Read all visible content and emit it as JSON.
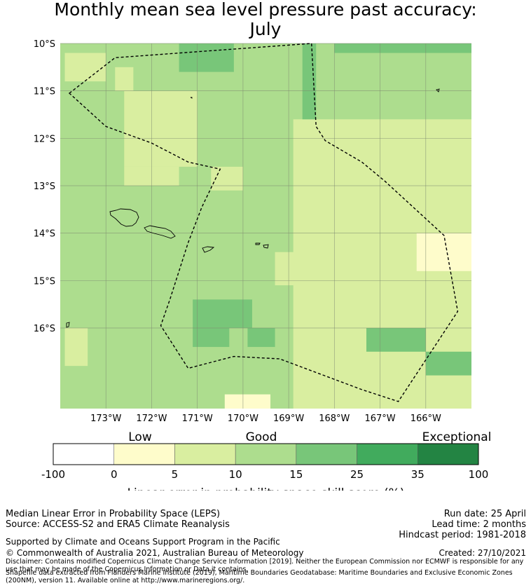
{
  "title": {
    "line1": "Monthly mean sea level pressure past accuracy:",
    "line2": "July"
  },
  "chart_data": {
    "type": "heatmap",
    "title": "Monthly mean sea level pressure past accuracy: July",
    "x_ticks": [
      "173°W",
      "172°W",
      "171°W",
      "170°W",
      "169°W",
      "168°W",
      "167°W",
      "166°W"
    ],
    "y_ticks": [
      "10°S",
      "11°S",
      "12°S",
      "13°S",
      "14°S",
      "15°S",
      "16°S"
    ],
    "lon_range": [
      174.0,
      165.0
    ],
    "lat_range": [
      10.0,
      17.7
    ],
    "colorbar": {
      "label": "Linear error in probability space skill score (%)",
      "ticks": [
        "-100",
        "0",
        "5",
        "10",
        "15",
        "25",
        "35",
        "100"
      ],
      "category_labels": [
        "Low",
        "Good",
        "Exceptional"
      ],
      "colors": [
        "#ffffff",
        "#fefccb",
        "#d9eea0",
        "#addd8e",
        "#78c679",
        "#41ab5d",
        "#238443"
      ]
    },
    "base_category": "10-15",
    "dominant_categories": [
      "5-10",
      "10-15",
      "15-25",
      "0-5"
    ],
    "regions": [
      {
        "category": "5-10",
        "from_lon": 173.9,
        "to_lon": 173.0,
        "from_lat": 10.2,
        "to_lat": 10.8
      },
      {
        "category": "15-25",
        "from_lon": 171.4,
        "to_lon": 170.2,
        "from_lat": 10.0,
        "to_lat": 10.6
      },
      {
        "category": "15-25",
        "from_lon": 168.0,
        "to_lon": 165.0,
        "from_lat": 10.0,
        "to_lat": 10.2
      },
      {
        "category": "5-10",
        "from_lon": 172.6,
        "to_lon": 171.0,
        "from_lat": 11.0,
        "to_lat": 12.6
      },
      {
        "category": "5-10",
        "from_lon": 168.9,
        "to_lon": 165.0,
        "from_lat": 11.6,
        "to_lat": 17.7
      },
      {
        "category": "0-5",
        "from_lon": 166.2,
        "to_lon": 165.0,
        "from_lat": 14.0,
        "to_lat": 14.8
      },
      {
        "category": "0-5",
        "from_lon": 170.4,
        "to_lon": 169.4,
        "from_lat": 17.4,
        "to_lat": 17.7
      },
      {
        "category": "15-25",
        "from_lon": 171.1,
        "to_lon": 169.8,
        "from_lat": 15.4,
        "to_lat": 16.0
      }
    ],
    "boundary_polygon_lonlat": [
      [
        173.8,
        11.05
      ],
      [
        172.8,
        10.3
      ],
      [
        168.5,
        10.0
      ],
      [
        168.4,
        11.75
      ],
      [
        168.2,
        12.05
      ],
      [
        167.4,
        12.5
      ],
      [
        166.9,
        12.9
      ],
      [
        165.6,
        14.05
      ],
      [
        165.3,
        15.65
      ],
      [
        166.6,
        17.55
      ],
      [
        167.4,
        17.3
      ],
      [
        169.2,
        16.65
      ],
      [
        170.2,
        16.6
      ],
      [
        171.2,
        16.85
      ],
      [
        171.8,
        15.95
      ],
      [
        171.6,
        15.4
      ],
      [
        171.2,
        14.2
      ],
      [
        170.9,
        13.45
      ],
      [
        170.5,
        12.65
      ],
      [
        171.2,
        12.5
      ],
      [
        172.0,
        12.1
      ],
      [
        173.0,
        11.75
      ]
    ],
    "islands": [
      "Savai'i",
      "Upolu",
      "Tutuila",
      "Manu'a"
    ]
  },
  "footer": {
    "left_line1": "Median Linear Error in Probability Space (LEPS)",
    "left_line2": "Source: ACCESS-S2 and ERA5 Climate Reanalysis",
    "right_line1": "Run date: 25 April",
    "right_line2": "Lead time: 2 months",
    "right_line3": "Hindcast period: 1981-2018",
    "supported": "Supported by Climate and Oceans Support Program in the Pacific",
    "copyright": "© Commonwealth of Australia 2021, Australian Bureau of Meteorology",
    "created": "Created: 27/10/2021",
    "disclaimer": "Disclaimer: Contains modified Copernicus Climate Change Service Information [2019]. Neither the European Commission nor ECMWF is responsible for any use that may be made of the Copernicus Information or Data it contains.",
    "shapefile": "Shapefile data extracted from Flanders Marine Institute (2019), Maritime Boundaries Geodatabase: Maritime Boundaries and Exclusive Economic Zones (200NM), version 11. Available online at http://www.marineregions.org/."
  }
}
